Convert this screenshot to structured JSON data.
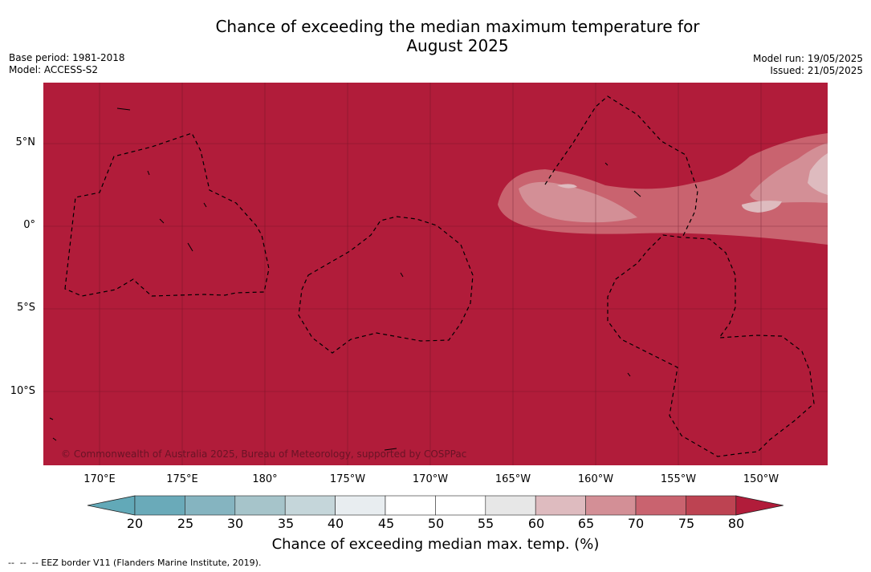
{
  "title_line1": "Chance of exceeding the median maximum temperature for",
  "title_line2": "August 2025",
  "base_period": "Base period: 1981-2018",
  "model": "Model: ACCESS-S2",
  "model_run": "Model run: 19/05/2025",
  "issued": "Issued: 21/05/2025",
  "copyright": "© Commonwealth of Australia 2025, Bureau of Meteorology, supported by COSPPac",
  "lat_labels": [
    "5°N",
    "0°",
    "5°S",
    "10°S"
  ],
  "lon_labels": [
    "170°E",
    "175°E",
    "180°",
    "175°W",
    "170°W",
    "165°W",
    "160°W",
    "155°W",
    "150°W"
  ],
  "colorbar": {
    "ticks": [
      "20",
      "25",
      "30",
      "35",
      "40",
      "45",
      "50",
      "55",
      "60",
      "65",
      "70",
      "75",
      "80"
    ],
    "colors": [
      "#62a9b8",
      "#6aaab9",
      "#85b4c0",
      "#a6c4ca",
      "#c5d6da",
      "#e8edf0",
      "#ffffff",
      "#ffffff",
      "#e7e7e7",
      "#debbbf",
      "#d38f96",
      "#c9636f",
      "#bd4352",
      "#b11c3a"
    ],
    "label": "Chance of exceeding median max. temp. (%)"
  },
  "legend_footer": "--  --  -- EEZ border V11 (Flanders Marine Institute, 2019)."
}
